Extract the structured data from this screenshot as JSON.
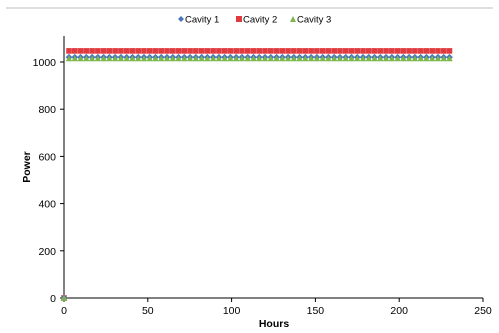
{
  "chart_data": {
    "type": "scatter",
    "title": "",
    "xlabel": "Hours",
    "ylabel": "Power",
    "xlim": [
      0,
      250
    ],
    "ylim": [
      0,
      1000
    ],
    "xticks": [
      "0",
      "50",
      "100",
      "150",
      "200",
      "250"
    ],
    "yticks": [
      "0",
      "200",
      "400",
      "600",
      "800",
      "1000"
    ],
    "grid": false,
    "legend_position": "top-center",
    "series": [
      {
        "name": "Cavity 1",
        "color": "#4a76be",
        "marker": "diamond",
        "points": [
          [
            0,
            0
          ],
          [
            3,
            1020
          ],
          [
            230,
            1020
          ]
        ]
      },
      {
        "name": "Cavity 2",
        "color": "#e03a3e",
        "marker": "square",
        "points": [
          [
            0,
            0
          ],
          [
            3,
            1047
          ],
          [
            230,
            1047
          ]
        ]
      },
      {
        "name": "Cavity 3",
        "color": "#7ab648",
        "marker": "triangle",
        "points": [
          [
            0,
            0
          ],
          [
            3,
            1015
          ],
          [
            230,
            1015
          ]
        ]
      }
    ]
  }
}
